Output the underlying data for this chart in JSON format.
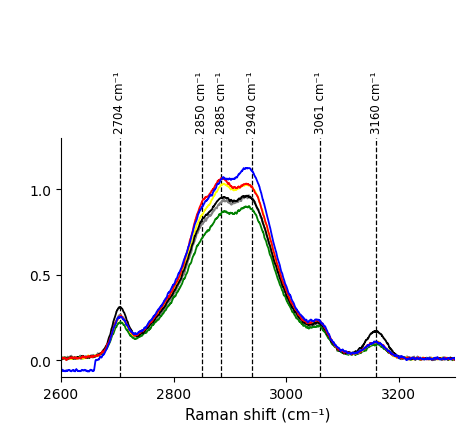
{
  "x_min": 2600,
  "x_max": 3300,
  "y_min": -0.1,
  "y_max": 1.3,
  "xlabel": "Raman shift (cm⁻¹)",
  "xlabel_fontsize": 11,
  "yticks": [
    0.0,
    0.5,
    1.0
  ],
  "xticks": [
    2600,
    2800,
    3000,
    3200
  ],
  "vlines": [
    2704,
    2850,
    2885,
    2940,
    3061,
    3160
  ],
  "vline_labels": [
    "2704 cm⁻¹",
    "2850 cm⁻¹",
    "2885 cm⁻¹",
    "2940 cm⁻¹",
    "3061 cm⁻¹",
    "3160 cm⁻¹"
  ],
  "linewidth": 1.3,
  "background_color": "#ffffff"
}
